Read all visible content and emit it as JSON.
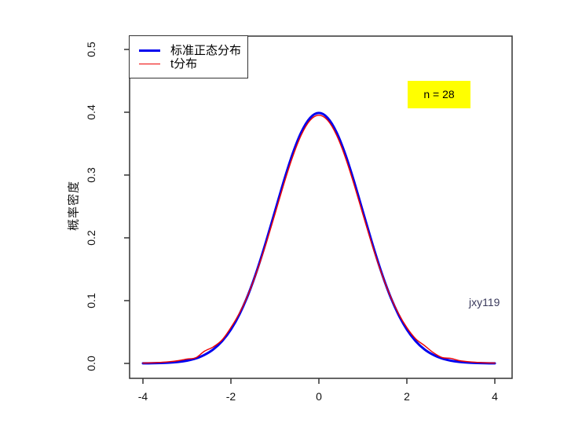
{
  "annotations": {
    "n_box": {
      "text": "n = 28",
      "bg": "#ffff00"
    },
    "watermark": {
      "text": "jxy119",
      "color": "#3a3a5c"
    }
  },
  "legend": {
    "position": "topleft",
    "items": [
      {
        "label": "标准正态分布",
        "color": "#0000ee",
        "line_width": 3
      },
      {
        "label": "t分布",
        "color": "#ee0000",
        "line_width": 1.4
      }
    ]
  },
  "chart_data": {
    "type": "line",
    "title": "",
    "xlabel": "",
    "ylabel": "概率密度",
    "xlim": [
      -4.3,
      4.4
    ],
    "ylim": [
      -0.02,
      0.52
    ],
    "x_ticks": [
      -4,
      -2,
      0,
      2,
      4
    ],
    "x_tick_labels": [
      "-4",
      "-2",
      "0",
      "2",
      "4"
    ],
    "y_ticks": [
      0.0,
      0.1,
      0.2,
      0.3,
      0.4,
      0.5
    ],
    "y_tick_labels": [
      "0.0",
      "0.1",
      "0.2",
      "0.3",
      "0.4",
      "0.5"
    ],
    "grid": false,
    "legend_position": "topleft",
    "frame_color": "#333333",
    "x": [
      -4,
      -3.8,
      -3.6,
      -3.4,
      -3.2,
      -3,
      -2.8,
      -2.6,
      -2.4,
      -2.2,
      -2,
      -1.8,
      -1.6,
      -1.4,
      -1.2,
      -1,
      -0.8,
      -0.6,
      -0.4,
      -0.2,
      0,
      0.2,
      0.4,
      0.6,
      0.8,
      1,
      1.2,
      1.4,
      1.6,
      1.8,
      2,
      2.2,
      2.4,
      2.6,
      2.8,
      3,
      3.2,
      3.4,
      3.6,
      3.8,
      4
    ],
    "series": [
      {
        "name": "标准正态分布",
        "color": "#0000ee",
        "width": 3,
        "values": [
          0.0001,
          0.0003,
          0.0006,
          0.0012,
          0.0024,
          0.0044,
          0.0079,
          0.0136,
          0.0224,
          0.0355,
          0.054,
          0.079,
          0.1109,
          0.1497,
          0.1942,
          0.242,
          0.2897,
          0.3332,
          0.3683,
          0.391,
          0.3989,
          0.391,
          0.3683,
          0.3332,
          0.2897,
          0.242,
          0.1942,
          0.1497,
          0.1109,
          0.079,
          0.054,
          0.0355,
          0.0224,
          0.0136,
          0.0079,
          0.0044,
          0.0024,
          0.0012,
          0.0006,
          0.0003,
          0.0001
        ]
      },
      {
        "name": "t分布",
        "color": "#ee0000",
        "width": 1.4,
        "values": [
          0.0006,
          0.001,
          0.0016,
          0.0027,
          0.0044,
          0.007,
          0.009,
          0.0195,
          0.0264,
          0.0375,
          0.0571,
          0.0809,
          0.1112,
          0.1482,
          0.191,
          0.2375,
          0.2847,
          0.3283,
          0.3638,
          0.3871,
          0.3952,
          0.3871,
          0.3638,
          0.3283,
          0.2847,
          0.2375,
          0.191,
          0.1482,
          0.1112,
          0.0809,
          0.0571,
          0.0393,
          0.0285,
          0.0173,
          0.0095,
          0.008,
          0.0044,
          0.0027,
          0.0016,
          0.001,
          0.0006
        ]
      }
    ]
  }
}
